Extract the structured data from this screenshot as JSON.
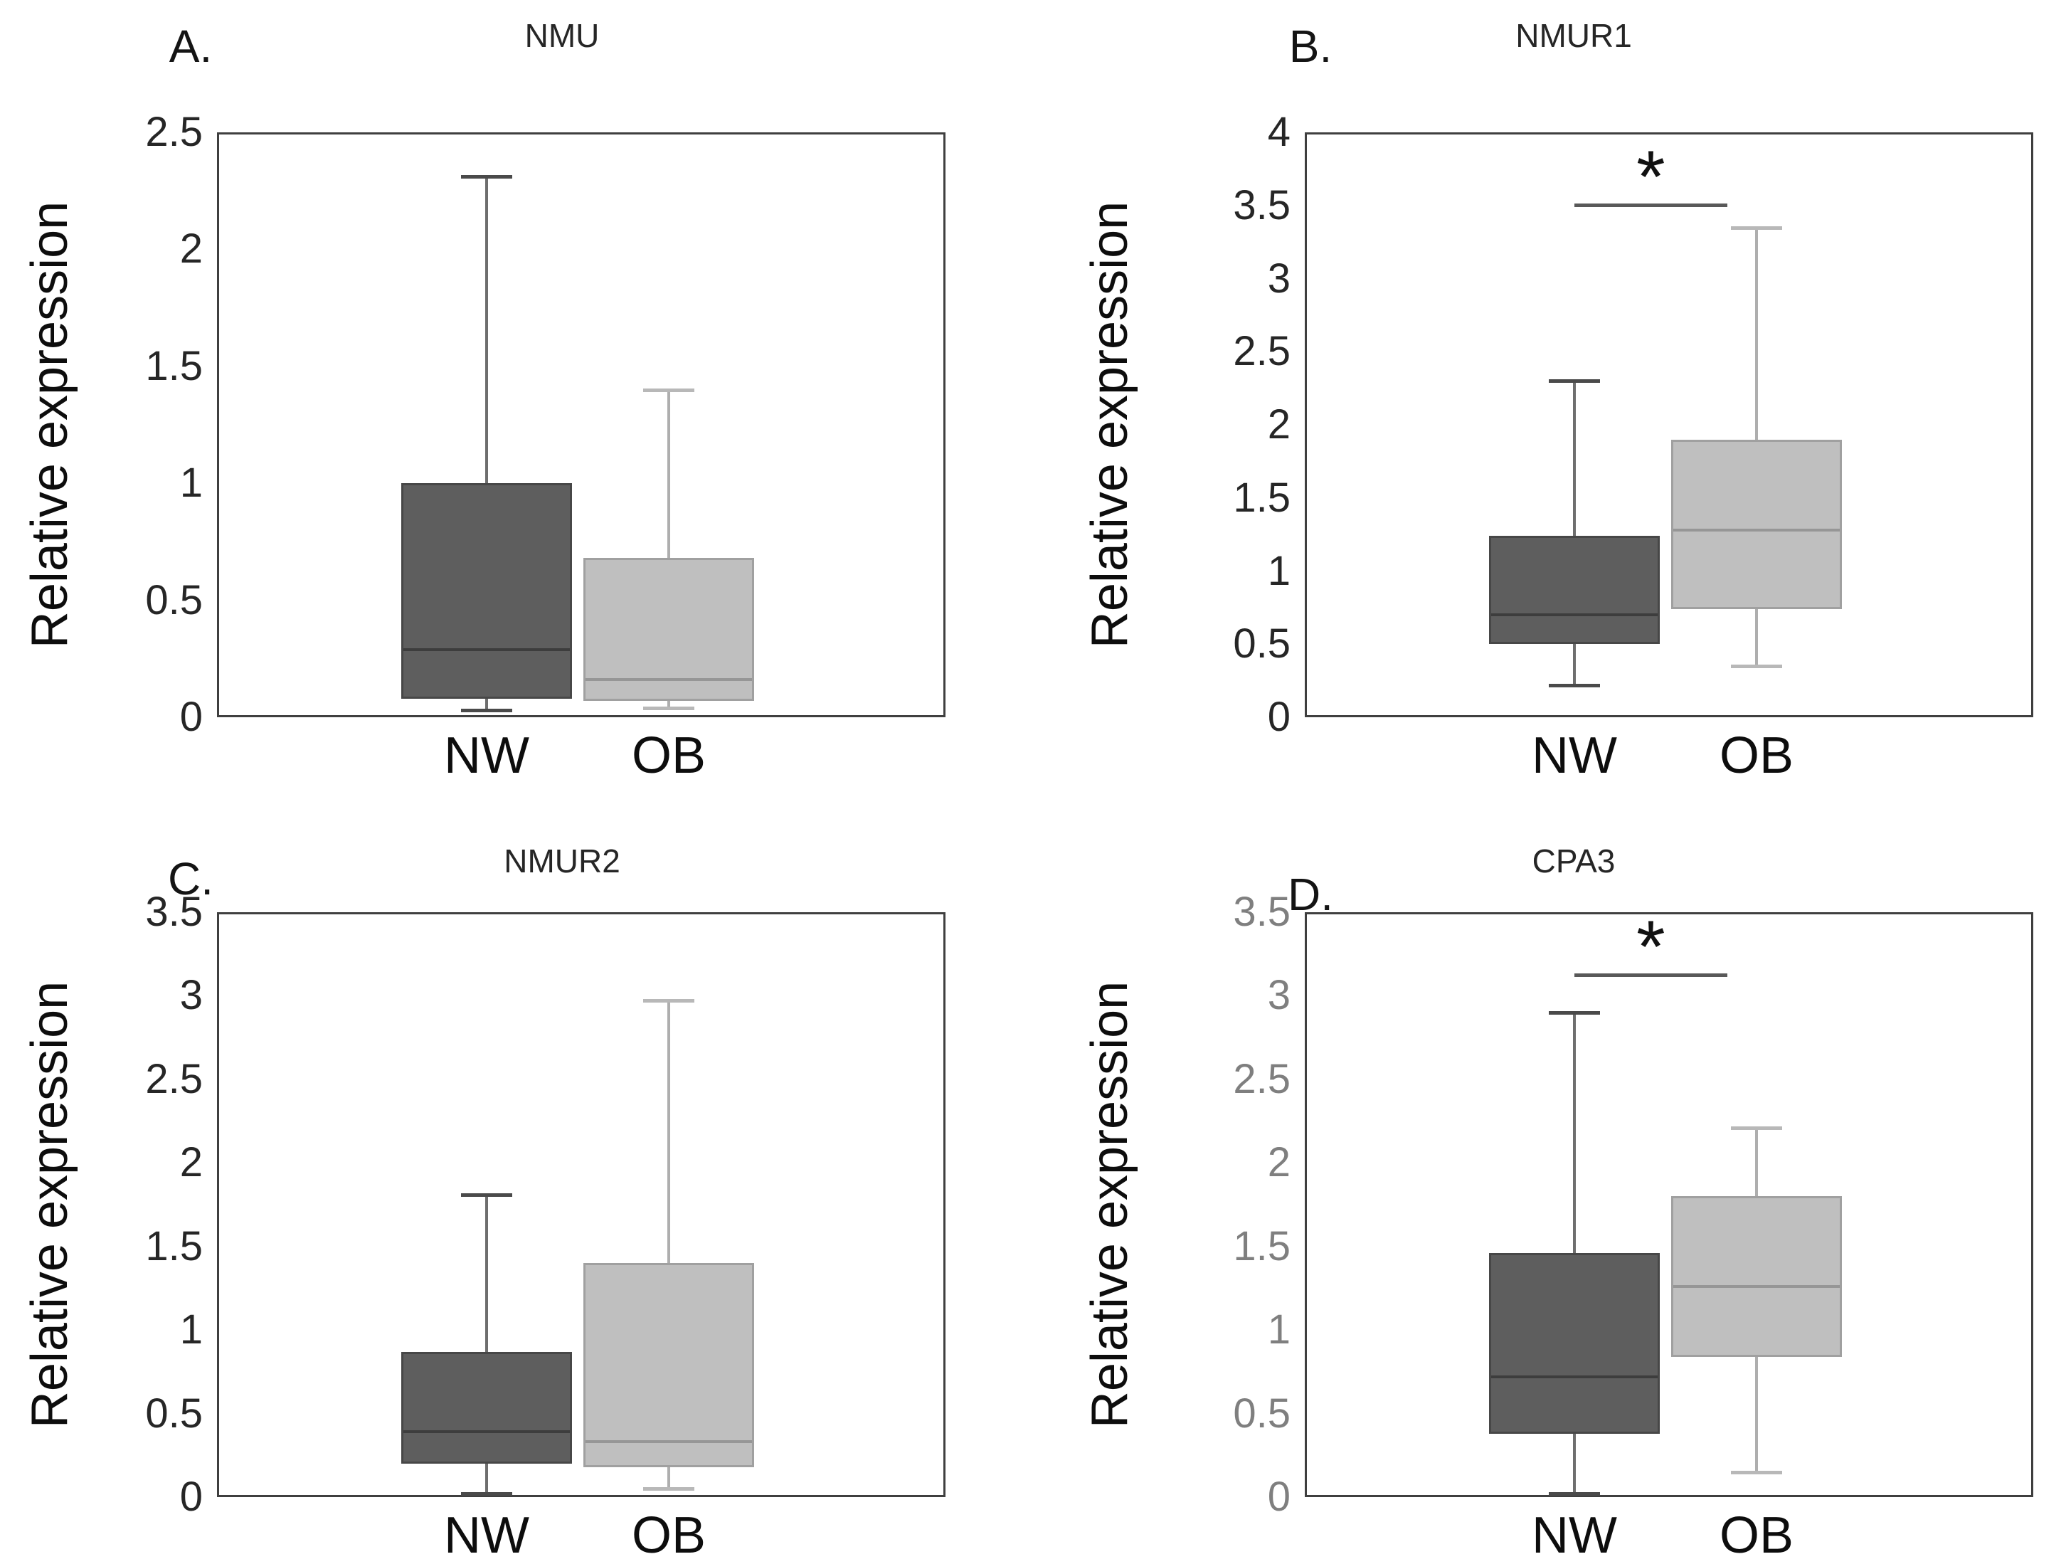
{
  "figure": {
    "background": "#ffffff",
    "frame_border_color": "#3f3f3f",
    "significance_bar_color": "#595959"
  },
  "chart_data": [
    {
      "type": "box",
      "panel_label": "A.",
      "title": "NMU",
      "ylabel": "Relative expression",
      "categories": [
        "NW",
        "OB"
      ],
      "ylim": [
        0,
        2.5
      ],
      "ytick_labels": [
        "0",
        "0.5",
        "1",
        "1.5",
        "2",
        "2.5"
      ],
      "axis_tick_color": "#262626",
      "grid": false,
      "series": [
        {
          "name": "NW",
          "min": 0.03,
          "q1": 0.08,
          "median": 0.29,
          "q3": 1.0,
          "max": 2.31,
          "fill": "#5e5e5e",
          "border": "#474747",
          "median_color": "#3d3d3d",
          "whisker_color": "#6e6e6e",
          "cap_color": "#4a4a4a"
        },
        {
          "name": "OB",
          "min": 0.04,
          "q1": 0.07,
          "median": 0.16,
          "q3": 0.68,
          "max": 1.4,
          "fill": "#bfbfbf",
          "border": "#a0a0a0",
          "median_color": "#969696",
          "whisker_color": "#aeaeae",
          "cap_color": "#b8b8b8"
        }
      ],
      "significance": null
    },
    {
      "type": "box",
      "panel_label": "B.",
      "title": "NMUR1",
      "ylabel": "Relative expression",
      "categories": [
        "NW",
        "OB"
      ],
      "ylim": [
        0,
        4
      ],
      "ytick_labels": [
        "0",
        "0.5",
        "1",
        "1.5",
        "2",
        "2.5",
        "3",
        "3.5",
        "4"
      ],
      "axis_tick_color": "#262626",
      "grid": false,
      "series": [
        {
          "name": "NW",
          "min": 0.22,
          "q1": 0.5,
          "median": 0.7,
          "q3": 1.24,
          "max": 2.3,
          "fill": "#5e5e5e",
          "border": "#474747",
          "median_color": "#3d3d3d",
          "whisker_color": "#6e6e6e",
          "cap_color": "#4a4a4a"
        },
        {
          "name": "OB",
          "min": 0.35,
          "q1": 0.74,
          "median": 1.28,
          "q3": 1.9,
          "max": 3.35,
          "fill": "#bfbfbf",
          "border": "#a0a0a0",
          "median_color": "#969696",
          "whisker_color": "#aeaeae",
          "cap_color": "#b8b8b8"
        }
      ],
      "significance": {
        "label": "*",
        "y": 3.5
      }
    },
    {
      "type": "box",
      "panel_label": "C.",
      "title": "NMUR2",
      "ylabel": "Relative expression",
      "categories": [
        "NW",
        "OB"
      ],
      "ylim": [
        0,
        3.5
      ],
      "ytick_labels": [
        "0",
        "0.5",
        "1",
        "1.5",
        "2",
        "2.5",
        "3",
        "3.5"
      ],
      "axis_tick_color": "#262626",
      "grid": false,
      "series": [
        {
          "name": "NW",
          "min": 0.02,
          "q1": 0.2,
          "median": 0.39,
          "q3": 0.87,
          "max": 1.81,
          "fill": "#5e5e5e",
          "border": "#474747",
          "median_color": "#3d3d3d",
          "whisker_color": "#6e6e6e",
          "cap_color": "#4a4a4a"
        },
        {
          "name": "OB",
          "min": 0.05,
          "q1": 0.18,
          "median": 0.33,
          "q3": 1.4,
          "max": 2.97,
          "fill": "#bfbfbf",
          "border": "#a0a0a0",
          "median_color": "#969696",
          "whisker_color": "#aeaeae",
          "cap_color": "#b8b8b8"
        }
      ],
      "significance": null
    },
    {
      "type": "box",
      "panel_label": "D.",
      "title": "CPA3",
      "ylabel": "Relative expression",
      "categories": [
        "NW",
        "OB"
      ],
      "ylim": [
        0,
        3.5
      ],
      "ytick_labels": [
        "0",
        "0.5",
        "1",
        "1.5",
        "2",
        "2.5",
        "3",
        "3.5"
      ],
      "axis_tick_color": "#7f7f7f",
      "grid": false,
      "series": [
        {
          "name": "NW",
          "min": 0.02,
          "q1": 0.38,
          "median": 0.72,
          "q3": 1.46,
          "max": 2.9,
          "fill": "#5e5e5e",
          "border": "#474747",
          "median_color": "#3d3d3d",
          "whisker_color": "#6e6e6e",
          "cap_color": "#4a4a4a"
        },
        {
          "name": "OB",
          "min": 0.15,
          "q1": 0.84,
          "median": 1.26,
          "q3": 1.8,
          "max": 2.21,
          "fill": "#bfbfbf",
          "border": "#a0a0a0",
          "median_color": "#969696",
          "whisker_color": "#aeaeae",
          "cap_color": "#b8b8b8"
        }
      ],
      "significance": {
        "label": "*",
        "y": 3.12
      }
    }
  ]
}
